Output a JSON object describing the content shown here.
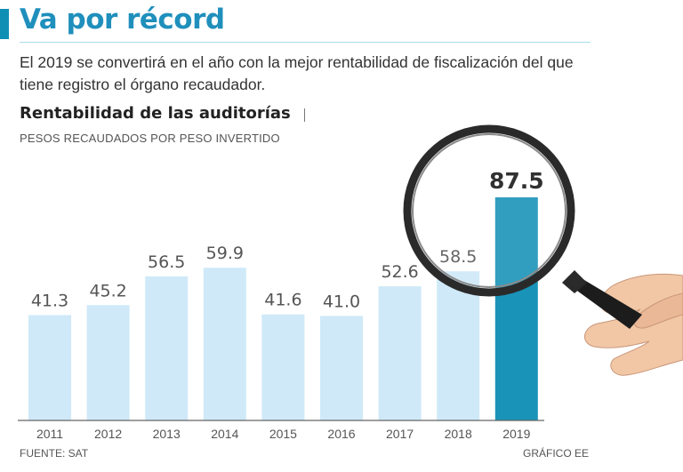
{
  "header": {
    "title": "Va por récord",
    "subtitle": "El 2019 se convertirá en el año con la mejor rentabilidad de fiscalización del que tiene registro el órgano recaudador."
  },
  "chart_data": {
    "type": "bar",
    "title": "Rentabilidad de las auditorías",
    "subtitle": "PESOS RECAUDADOS POR PESO INVERTIDO",
    "categories": [
      "2011",
      "2012",
      "2013",
      "2014",
      "2015",
      "2016",
      "2017",
      "2018",
      "2019"
    ],
    "values": [
      41.3,
      45.2,
      56.5,
      59.9,
      41.6,
      41.0,
      52.6,
      58.5,
      87.5
    ],
    "value_labels": [
      "41.3",
      "45.2",
      "56.5",
      "59.9",
      "41.6",
      "41.0",
      "52.6",
      "58.5",
      "87.5"
    ],
    "highlight_index": 8,
    "xlabel": "",
    "ylabel": "",
    "ylim": [
      0,
      87.5
    ],
    "grid": false,
    "colors": {
      "bar": "#cfe9f8",
      "highlight_bar": "#1a93b8",
      "axis": "#666666",
      "label": "#555555",
      "highlight_label": "#1a1a1a"
    }
  },
  "footer": {
    "source": "FUENTE: SAT",
    "credit": "GRÁFICO EE"
  },
  "decoration": {
    "icon": "magnifying-glass-hand-icon"
  }
}
